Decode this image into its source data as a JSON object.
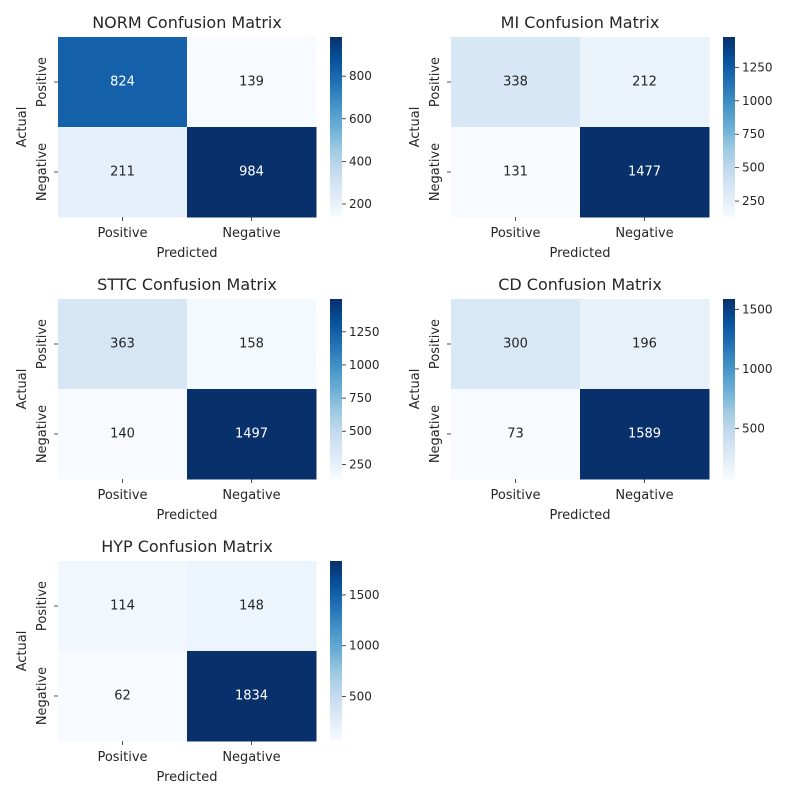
{
  "chart_data": [
    {
      "type": "heatmap",
      "title": "NORM Confusion Matrix",
      "xlabel": "Predicted",
      "ylabel": "Actual",
      "x_categories": [
        "Positive",
        "Negative"
      ],
      "y_categories": [
        "Positive",
        "Negative"
      ],
      "values": [
        [
          824,
          139
        ],
        [
          211,
          984
        ]
      ],
      "colormap": "Blues",
      "colorbar_range": [
        139,
        984
      ],
      "colorbar_ticks": [
        200,
        400,
        600,
        800
      ]
    },
    {
      "type": "heatmap",
      "title": "MI Confusion Matrix",
      "xlabel": "Predicted",
      "ylabel": "Actual",
      "x_categories": [
        "Positive",
        "Negative"
      ],
      "y_categories": [
        "Positive",
        "Negative"
      ],
      "values": [
        [
          338,
          212
        ],
        [
          131,
          1477
        ]
      ],
      "colormap": "Blues",
      "colorbar_range": [
        131,
        1477
      ],
      "colorbar_ticks": [
        250,
        500,
        750,
        1000,
        1250
      ]
    },
    {
      "type": "heatmap",
      "title": "STTC Confusion Matrix",
      "xlabel": "Predicted",
      "ylabel": "Actual",
      "x_categories": [
        "Positive",
        "Negative"
      ],
      "y_categories": [
        "Positive",
        "Negative"
      ],
      "values": [
        [
          363,
          158
        ],
        [
          140,
          1497
        ]
      ],
      "colormap": "Blues",
      "colorbar_range": [
        140,
        1497
      ],
      "colorbar_ticks": [
        250,
        500,
        750,
        1000,
        1250
      ]
    },
    {
      "type": "heatmap",
      "title": "CD Confusion Matrix",
      "xlabel": "Predicted",
      "ylabel": "Actual",
      "x_categories": [
        "Positive",
        "Negative"
      ],
      "y_categories": [
        "Positive",
        "Negative"
      ],
      "values": [
        [
          300,
          196
        ],
        [
          73,
          1589
        ]
      ],
      "colormap": "Blues",
      "colorbar_range": [
        73,
        1589
      ],
      "colorbar_ticks": [
        500,
        1000,
        1500
      ]
    },
    {
      "type": "heatmap",
      "title": "HYP Confusion Matrix",
      "xlabel": "Predicted",
      "ylabel": "Actual",
      "x_categories": [
        "Positive",
        "Negative"
      ],
      "y_categories": [
        "Positive",
        "Negative"
      ],
      "values": [
        [
          114,
          148
        ],
        [
          62,
          1834
        ]
      ],
      "colormap": "Blues",
      "colorbar_range": [
        62,
        1834
      ],
      "colorbar_ticks": [
        500,
        1000,
        1500
      ]
    }
  ]
}
